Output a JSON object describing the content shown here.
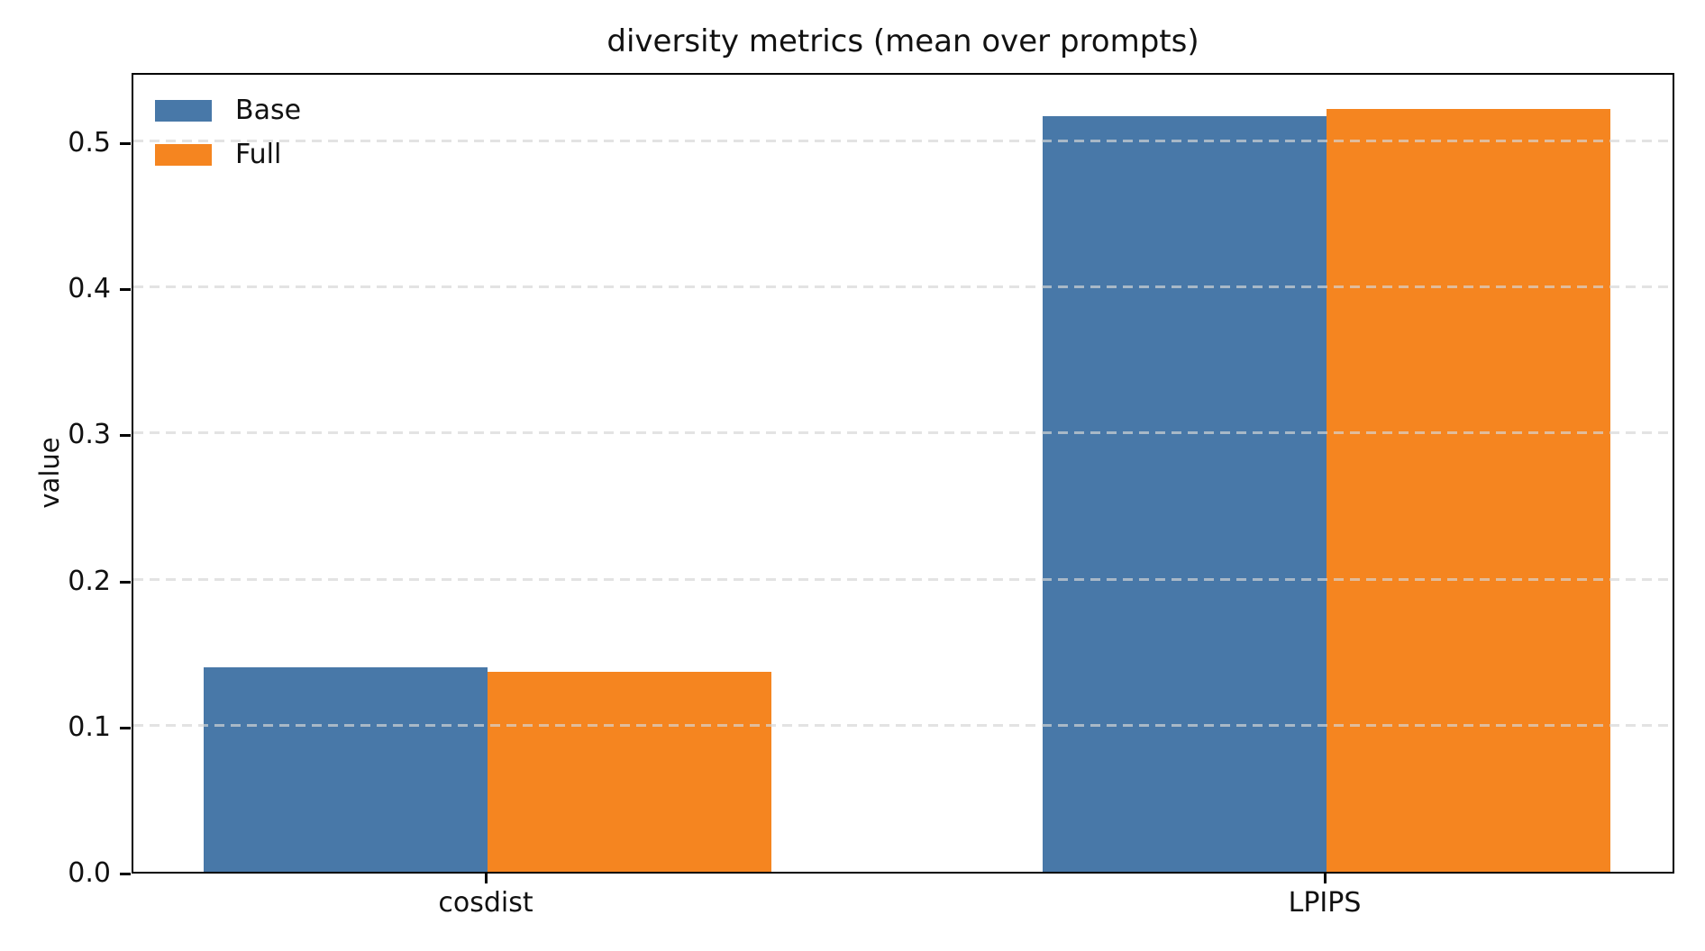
{
  "chart_data": {
    "type": "bar",
    "title": "diversity metrics (mean over prompts)",
    "xlabel": "",
    "ylabel": "value",
    "categories": [
      "cosdist",
      "LPIPS"
    ],
    "series": [
      {
        "name": "Base",
        "color": "#4878A8",
        "values": [
          0.14,
          0.517
        ]
      },
      {
        "name": "Full",
        "color": "#F58520",
        "values": [
          0.137,
          0.522
        ]
      }
    ],
    "ylim": [
      0,
      0.548
    ],
    "yticks": [
      0.0,
      0.1,
      0.2,
      0.3,
      0.4,
      0.5
    ],
    "ytick_labels": [
      "0.0",
      "0.1",
      "0.2",
      "0.3",
      "0.4",
      "0.5"
    ],
    "grid": "horizontal dashed gridlines, drawn over bars",
    "legend_position": "upper left",
    "legend_frame": false,
    "axis_color": "#000000",
    "gridline_color": "#d6d6d6",
    "background_color": "#ffffff"
  }
}
